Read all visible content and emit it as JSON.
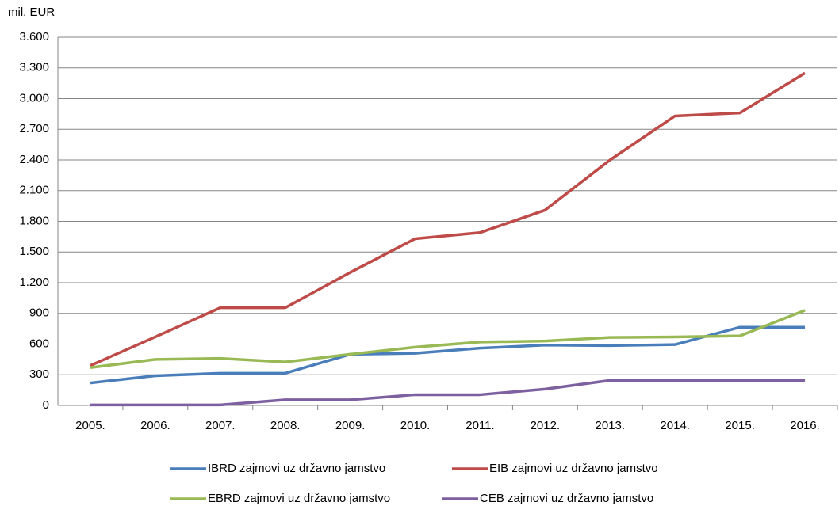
{
  "chart_data": {
    "type": "line",
    "y_axis_label": "mil. EUR",
    "categories": [
      "2005.",
      "2006.",
      "2007.",
      "2008.",
      "2009.",
      "2010.",
      "2011.",
      "2012.",
      "2013.",
      "2014.",
      "2015.",
      "2016."
    ],
    "series": [
      {
        "name": "IBRD zajmovi uz državno jamstvo",
        "color": "#4a7ebb",
        "values": [
          220,
          290,
          315,
          315,
          500,
          510,
          560,
          590,
          585,
          595,
          765,
          765
        ]
      },
      {
        "name": "EIB zajmovi uz državno jamstvo",
        "color": "#be4b48",
        "values": [
          390,
          670,
          955,
          955,
          1300,
          1630,
          1690,
          1910,
          2400,
          2830,
          2860,
          3250
        ]
      },
      {
        "name": "EBRD zajmovi uz državno jamstvo",
        "color": "#98b954",
        "values": [
          370,
          450,
          460,
          425,
          500,
          570,
          620,
          630,
          665,
          670,
          680,
          930
        ]
      },
      {
        "name": "CEB zajmovi uz državno jamstvo",
        "color": "#7d60a0",
        "values": [
          5,
          5,
          5,
          55,
          55,
          105,
          105,
          160,
          245,
          245,
          245,
          245
        ]
      }
    ],
    "ylim": [
      0,
      3600
    ],
    "yticks": [
      0,
      300,
      600,
      900,
      {
        "value": 1200,
        "label": "1.200"
      },
      {
        "value": 1500,
        "label": "1.500"
      },
      {
        "value": 1800,
        "label": "1.800"
      },
      {
        "value": 2100,
        "label": "2.100"
      },
      {
        "value": 2400,
        "label": "2.400"
      },
      {
        "value": 2700,
        "label": "2.700"
      },
      {
        "value": 3000,
        "label": "3.000"
      },
      {
        "value": 3300,
        "label": "3.300"
      },
      {
        "value": 3600,
        "label": "3.600"
      }
    ],
    "grid": true,
    "legend": "bottom"
  }
}
